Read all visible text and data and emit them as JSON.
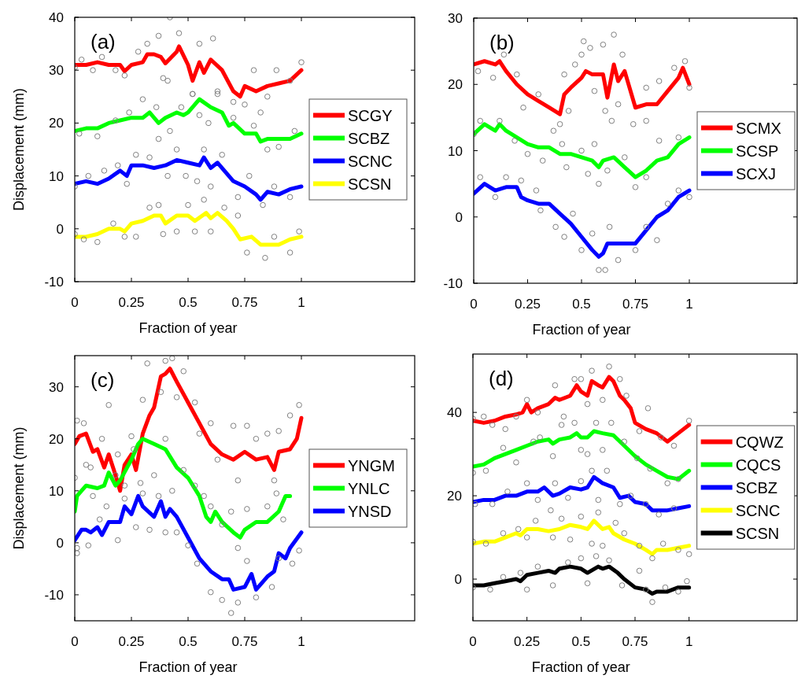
{
  "chart_data": [
    {
      "type": "line",
      "annotations": [
        "(a)"
      ],
      "xlabel": "Fraction of year",
      "ylabel": "Displacement (mm)",
      "xlim": [
        0,
        1.5
      ],
      "xticks": [
        0,
        0.25,
        0.5,
        0.75,
        1
      ],
      "ylim": [
        -10,
        40
      ],
      "yticks": [
        -10,
        0,
        10,
        20,
        30,
        40
      ],
      "legend": "right",
      "series": [
        {
          "name": "SCGY",
          "color": "#ff0000",
          "x": [
            0,
            0.05,
            0.1,
            0.15,
            0.2,
            0.22,
            0.25,
            0.3,
            0.32,
            0.35,
            0.38,
            0.4,
            0.45,
            0.46,
            0.5,
            0.52,
            0.55,
            0.57,
            0.6,
            0.65,
            0.7,
            0.73,
            0.75,
            0.8,
            0.85,
            0.9,
            0.95,
            1
          ],
          "values": [
            31,
            31,
            31.5,
            31,
            31,
            29.8,
            31,
            31.5,
            33,
            33,
            32.5,
            31.3,
            33.5,
            34.5,
            31,
            28,
            31.5,
            29.5,
            32,
            30,
            26,
            25,
            27,
            26,
            27,
            27.5,
            28,
            30
          ]
        },
        {
          "name": "SCBZ",
          "color": "#00ff00",
          "x": [
            0,
            0.05,
            0.1,
            0.15,
            0.2,
            0.25,
            0.3,
            0.33,
            0.37,
            0.4,
            0.45,
            0.48,
            0.5,
            0.55,
            0.6,
            0.65,
            0.68,
            0.7,
            0.75,
            0.8,
            0.82,
            0.85,
            0.9,
            0.95,
            1
          ],
          "values": [
            18.5,
            19,
            19,
            20,
            20.5,
            21,
            21,
            22,
            20,
            21,
            22,
            21.5,
            22,
            24.5,
            23,
            22,
            19.5,
            20,
            18,
            18,
            16.5,
            17,
            17,
            17,
            18
          ]
        },
        {
          "name": "SCNC",
          "color": "#0000ff",
          "x": [
            0,
            0.05,
            0.1,
            0.15,
            0.2,
            0.23,
            0.25,
            0.3,
            0.35,
            0.4,
            0.45,
            0.5,
            0.55,
            0.57,
            0.6,
            0.63,
            0.7,
            0.75,
            0.8,
            0.82,
            0.85,
            0.9,
            0.95,
            1
          ],
          "values": [
            8.5,
            9,
            8.5,
            9.5,
            11,
            10,
            12,
            12,
            11.5,
            12,
            13,
            12.5,
            12,
            13.5,
            11.5,
            12.5,
            9,
            8,
            6.5,
            5.5,
            7,
            6.5,
            7.5,
            8
          ]
        },
        {
          "name": "SCSN",
          "color": "#ffff00",
          "x": [
            0,
            0.05,
            0.1,
            0.15,
            0.2,
            0.22,
            0.25,
            0.3,
            0.35,
            0.38,
            0.4,
            0.45,
            0.5,
            0.53,
            0.58,
            0.6,
            0.63,
            0.67,
            0.7,
            0.73,
            0.78,
            0.82,
            0.85,
            0.9,
            0.95,
            1
          ],
          "values": [
            -1.5,
            -1.5,
            -1,
            0,
            0,
            -0.5,
            1,
            1.5,
            2.5,
            2.5,
            1,
            2.5,
            2.5,
            1.5,
            3,
            2,
            3,
            1.5,
            0,
            -2,
            -1.5,
            -3,
            -3,
            -3,
            -2,
            -1.5
          ]
        },
        {
          "type": "scatter",
          "color": "#808080",
          "marker": "circle",
          "x": [
            0,
            0.03,
            0.08,
            0.12,
            0.18,
            0.22,
            0.28,
            0.32,
            0.37,
            0.39,
            0.41,
            0.42,
            0.46,
            0.52,
            0.55,
            0.61,
            0.63,
            0.7,
            0.75,
            0.79,
            0.85,
            0.89,
            0.95,
            1
          ],
          "values": [
            30.5,
            32,
            30,
            32.5,
            30,
            29,
            33.5,
            35,
            36.5,
            28.5,
            28,
            40,
            37,
            25.5,
            35,
            36,
            26,
            24,
            23.5,
            30,
            25,
            30,
            28,
            31.5
          ]
        },
        {
          "type": "scatter",
          "color": "#808080",
          "marker": "circle",
          "x": [
            0.02,
            0.1,
            0.18,
            0.24,
            0.3,
            0.36,
            0.37,
            0.42,
            0.47,
            0.52,
            0.55,
            0.59,
            0.63,
            0.7,
            0.79,
            0.82,
            0.85,
            0.9,
            0.97
          ],
          "values": [
            18,
            17.5,
            20.5,
            22,
            24.5,
            23,
            17,
            18.5,
            23,
            25.5,
            21.5,
            20,
            25.5,
            21,
            19.5,
            22,
            15,
            15.5,
            18.5
          ]
        },
        {
          "type": "scatter",
          "color": "#808080",
          "marker": "circle",
          "x": [
            0,
            0.06,
            0.13,
            0.19,
            0.23,
            0.27,
            0.33,
            0.41,
            0.45,
            0.49,
            0.54,
            0.57,
            0.6,
            0.65,
            0.72,
            0.77,
            0.83,
            0.88,
            0.95
          ],
          "values": [
            8,
            10,
            11,
            12,
            8.5,
            14,
            13.5,
            10,
            15,
            10,
            9,
            15,
            8,
            14,
            6,
            10,
            4.5,
            8,
            6
          ]
        },
        {
          "type": "scatter",
          "color": "#808080",
          "marker": "circle",
          "x": [
            0,
            0.04,
            0.1,
            0.17,
            0.22,
            0.27,
            0.33,
            0.37,
            0.39,
            0.45,
            0.5,
            0.53,
            0.57,
            0.6,
            0.66,
            0.72,
            0.76,
            0.84,
            0.88,
            0.95,
            0.99
          ],
          "values": [
            -1,
            -2,
            -2.5,
            1,
            -1.5,
            -1.5,
            4,
            4.5,
            -1,
            -0.5,
            4.5,
            -0.5,
            5.5,
            -0.5,
            4,
            2.5,
            -4.5,
            -5.5,
            -1.5,
            -4.5,
            -0.5
          ]
        }
      ]
    },
    {
      "type": "line",
      "annotations": [
        "(b)"
      ],
      "xlabel": "Fraction of year",
      "xlim": [
        0,
        1.5
      ],
      "xticks": [
        0,
        0.25,
        0.5,
        0.75,
        1
      ],
      "ylim": [
        -10,
        30
      ],
      "yticks": [
        -10,
        0,
        10,
        20,
        30
      ],
      "legend": "right",
      "series": [
        {
          "name": "SCMX",
          "color": "#ff0000",
          "x": [
            0,
            0.05,
            0.1,
            0.12,
            0.15,
            0.2,
            0.25,
            0.3,
            0.35,
            0.4,
            0.42,
            0.45,
            0.5,
            0.52,
            0.55,
            0.6,
            0.62,
            0.65,
            0.67,
            0.7,
            0.75,
            0.8,
            0.85,
            0.9,
            0.95,
            0.97,
            1
          ],
          "values": [
            23,
            23.5,
            23,
            23.5,
            22,
            20,
            18.5,
            17.5,
            16.5,
            15.5,
            18.5,
            19.5,
            21,
            22,
            21.5,
            21.5,
            18,
            23,
            20.5,
            22,
            16.5,
            17,
            17,
            19,
            21,
            22.5,
            20
          ]
        },
        {
          "name": "SCSP",
          "color": "#00ff00",
          "x": [
            0,
            0.05,
            0.1,
            0.12,
            0.15,
            0.2,
            0.25,
            0.3,
            0.35,
            0.4,
            0.45,
            0.5,
            0.55,
            0.58,
            0.6,
            0.65,
            0.7,
            0.75,
            0.8,
            0.85,
            0.9,
            0.95,
            1
          ],
          "values": [
            12.5,
            14,
            13,
            14,
            13,
            12,
            11,
            10.5,
            10.5,
            9.5,
            9.5,
            9,
            8.5,
            7.5,
            8.5,
            9,
            7.5,
            6,
            7,
            8.5,
            9,
            11,
            12
          ]
        },
        {
          "name": "SCXJ",
          "color": "#0000ff",
          "x": [
            0,
            0.05,
            0.1,
            0.15,
            0.2,
            0.22,
            0.25,
            0.3,
            0.35,
            0.4,
            0.45,
            0.5,
            0.55,
            0.58,
            0.6,
            0.62,
            0.65,
            0.7,
            0.75,
            0.8,
            0.85,
            0.9,
            0.95,
            1
          ],
          "values": [
            3.5,
            5,
            4,
            4.5,
            4.5,
            3,
            2.5,
            2,
            2,
            0.5,
            -1,
            -3,
            -5,
            -6,
            -5.5,
            -4,
            -4,
            -4,
            -4,
            -2,
            0,
            1,
            3,
            4
          ]
        },
        {
          "type": "scatter",
          "color": "#808080",
          "marker": "circle",
          "x": [
            0.02,
            0.09,
            0.14,
            0.2,
            0.23,
            0.3,
            0.37,
            0.4,
            0.42,
            0.44,
            0.47,
            0.5,
            0.51,
            0.54,
            0.56,
            0.6,
            0.61,
            0.64,
            0.65,
            0.67,
            0.69,
            0.74,
            0.8,
            0.8,
            0.86,
            0.93,
            0.98,
            1
          ],
          "values": [
            22,
            21,
            24.5,
            21.5,
            16.5,
            18.5,
            13,
            14,
            21.5,
            16,
            23,
            24.5,
            26.5,
            25.5,
            19,
            26,
            16,
            14.5,
            27.5,
            17,
            24.5,
            14,
            19.5,
            14.5,
            20.5,
            22.5,
            23.5,
            19.5
          ]
        },
        {
          "type": "scatter",
          "color": "#808080",
          "marker": "circle",
          "x": [
            0,
            0.03,
            0.12,
            0.19,
            0.25,
            0.32,
            0.41,
            0.43,
            0.5,
            0.53,
            0.56,
            0.58,
            0.62,
            0.7,
            0.75,
            0.8,
            0.86,
            0.95
          ],
          "values": [
            12.5,
            14.5,
            14.5,
            11.5,
            9.5,
            8.5,
            11,
            7.5,
            10,
            6.5,
            11,
            5,
            7,
            9,
            4.5,
            6,
            11.5,
            12
          ]
        },
        {
          "type": "scatter",
          "color": "#808080",
          "marker": "circle",
          "x": [
            0.03,
            0.1,
            0.15,
            0.22,
            0.29,
            0.31,
            0.38,
            0.42,
            0.46,
            0.5,
            0.55,
            0.58,
            0.61,
            0.63,
            0.67,
            0.75,
            0.8,
            0.85,
            0.9,
            0.95,
            1
          ],
          "values": [
            6,
            3,
            6,
            5.5,
            4,
            1,
            -1.5,
            -3,
            0.5,
            -5,
            -2.5,
            -8,
            -8,
            -1.5,
            -6.5,
            -5,
            -1.5,
            -3.5,
            2,
            4,
            3
          ]
        }
      ]
    },
    {
      "type": "line",
      "annotations": [
        "(c)"
      ],
      "xlabel": "Fraction of year",
      "ylabel": "Displacement (mm)",
      "xlim": [
        0,
        1.5
      ],
      "xticks": [
        0,
        0.25,
        0.5,
        0.75,
        1
      ],
      "ylim": [
        -15,
        36
      ],
      "yticks": [
        -10,
        0,
        10,
        20,
        30
      ],
      "legend": "right",
      "series": [
        {
          "name": "YNGM",
          "color": "#ff0000",
          "x": [
            0,
            0.02,
            0.05,
            0.08,
            0.1,
            0.13,
            0.15,
            0.18,
            0.2,
            0.22,
            0.25,
            0.27,
            0.3,
            0.33,
            0.35,
            0.38,
            0.4,
            0.42,
            0.45,
            0.5,
            0.55,
            0.6,
            0.65,
            0.7,
            0.75,
            0.8,
            0.85,
            0.88,
            0.9,
            0.95,
            0.98,
            1
          ],
          "values": [
            19,
            20.5,
            21,
            17.5,
            18,
            14.5,
            17,
            13,
            10,
            15,
            17,
            14,
            21,
            24.5,
            26,
            32,
            32.5,
            33.5,
            31,
            27,
            23,
            19,
            17,
            16,
            17.5,
            16,
            16.5,
            14,
            17.5,
            18,
            20,
            24
          ]
        },
        {
          "name": "YNLC",
          "color": "#00ff00",
          "x": [
            0,
            0.01,
            0.05,
            0.1,
            0.13,
            0.15,
            0.18,
            0.2,
            0.25,
            0.28,
            0.3,
            0.35,
            0.4,
            0.45,
            0.5,
            0.55,
            0.58,
            0.6,
            0.62,
            0.65,
            0.7,
            0.73,
            0.75,
            0.8,
            0.85,
            0.9,
            0.93,
            0.95
          ],
          "values": [
            6,
            9,
            11,
            10.5,
            11,
            13.5,
            11,
            12,
            16,
            19,
            20,
            19,
            18,
            14.5,
            12.5,
            9,
            5,
            4,
            6,
            4,
            2,
            1,
            2.5,
            4,
            4,
            6,
            9,
            9
          ]
        },
        {
          "name": "YNSD",
          "color": "#0000ff",
          "x": [
            0,
            0.03,
            0.05,
            0.07,
            0.1,
            0.12,
            0.15,
            0.2,
            0.22,
            0.25,
            0.28,
            0.3,
            0.35,
            0.38,
            0.4,
            0.42,
            0.45,
            0.5,
            0.55,
            0.6,
            0.65,
            0.68,
            0.7,
            0.75,
            0.78,
            0.8,
            0.85,
            0.88,
            0.9,
            0.93,
            0.95,
            1
          ],
          "values": [
            0.5,
            2.5,
            2.5,
            2,
            3,
            1.5,
            4,
            4,
            7,
            5.5,
            9,
            7,
            5,
            8,
            5,
            6.5,
            5,
            1,
            -3,
            -5.5,
            -7,
            -7,
            -9,
            -8.5,
            -6,
            -9,
            -6.5,
            -5.5,
            -2,
            -3,
            -1,
            2
          ]
        },
        {
          "type": "scatter",
          "color": "#808080",
          "marker": "circle",
          "x": [
            0.01,
            0.04,
            0.07,
            0.15,
            0.19,
            0.25,
            0.3,
            0.32,
            0.38,
            0.4,
            0.43,
            0.45,
            0.48,
            0.53,
            0.55,
            0.6,
            0.63,
            0.7,
            0.72,
            0.76,
            0.8,
            0.85,
            0.88,
            0.9,
            0.95,
            0.99
          ],
          "values": [
            23.5,
            23,
            14.5,
            26.5,
            17,
            20.5,
            27.5,
            34.5,
            29,
            35,
            35.5,
            28,
            33,
            27,
            21,
            23,
            16,
            22.5,
            12,
            22.5,
            20,
            21,
            12,
            21.5,
            24.5,
            26.5
          ]
        },
        {
          "type": "scatter",
          "color": "#808080",
          "marker": "circle",
          "x": [
            0,
            0.05,
            0.08,
            0.12,
            0.18,
            0.22,
            0.26,
            0.29,
            0.35,
            0.4,
            0.43,
            0.48,
            0.53,
            0.57,
            0.6,
            0.65,
            0.69,
            0.72,
            0.76,
            0.85,
            0.89,
            0.92
          ],
          "values": [
            12.5,
            15,
            9,
            20,
            13,
            11,
            18,
            11.5,
            13,
            20,
            10,
            14,
            11,
            9,
            7,
            3.5,
            6,
            -1,
            6.5,
            7,
            9.5,
            4.5
          ]
        },
        {
          "type": "scatter",
          "color": "#808080",
          "marker": "circle",
          "x": [
            0.01,
            0.01,
            0.06,
            0.11,
            0.14,
            0.19,
            0.22,
            0.27,
            0.3,
            0.33,
            0.37,
            0.4,
            0.45,
            0.5,
            0.54,
            0.6,
            0.65,
            0.69,
            0.72,
            0.76,
            0.8,
            0.87,
            0.9,
            0.96,
            0.99
          ],
          "values": [
            -1,
            -2,
            -0.5,
            4.5,
            7,
            0.5,
            8.5,
            3,
            9.5,
            2.5,
            9,
            2,
            2,
            -0.5,
            -4,
            -9.5,
            -11,
            -13.5,
            -11.5,
            -3.5,
            -10.5,
            -8.5,
            -3,
            -4,
            -1.5
          ]
        }
      ]
    },
    {
      "type": "line",
      "annotations": [
        "(d)"
      ],
      "xlabel": "Fraction of year",
      "xlim": [
        0,
        1.5
      ],
      "xticks": [
        0,
        0.25,
        0.5,
        0.75,
        1
      ],
      "ylim": [
        -10,
        54
      ],
      "yticks": [
        0,
        20,
        40
      ],
      "legend": "right",
      "series": [
        {
          "name": "CQWZ",
          "color": "#ff0000",
          "x": [
            0,
            0.05,
            0.1,
            0.15,
            0.2,
            0.23,
            0.25,
            0.27,
            0.3,
            0.35,
            0.38,
            0.4,
            0.45,
            0.48,
            0.5,
            0.53,
            0.55,
            0.58,
            0.6,
            0.63,
            0.65,
            0.68,
            0.7,
            0.73,
            0.75,
            0.8,
            0.85,
            0.9,
            0.95,
            1
          ],
          "values": [
            38,
            37.5,
            38,
            39,
            39.5,
            40,
            42,
            40,
            41,
            42,
            43.5,
            43,
            44,
            46.5,
            45,
            44,
            47.5,
            46.5,
            46,
            48.5,
            47.5,
            44,
            43,
            41,
            37.5,
            36,
            35,
            33,
            35,
            37
          ]
        },
        {
          "name": "CQCS",
          "color": "#00ff00",
          "x": [
            0,
            0.05,
            0.1,
            0.15,
            0.2,
            0.25,
            0.3,
            0.35,
            0.37,
            0.4,
            0.45,
            0.48,
            0.5,
            0.53,
            0.56,
            0.6,
            0.65,
            0.7,
            0.75,
            0.8,
            0.85,
            0.9,
            0.95,
            1
          ],
          "values": [
            27,
            27.5,
            29,
            30,
            31,
            32,
            33,
            33.5,
            32.5,
            33.5,
            34,
            35,
            34,
            34,
            35.5,
            35,
            34.5,
            32,
            29.5,
            27.5,
            26,
            24.5,
            24,
            26
          ]
        },
        {
          "name": "SCBZ",
          "color": "#0000ff",
          "x": [
            0,
            0.05,
            0.1,
            0.15,
            0.2,
            0.25,
            0.3,
            0.33,
            0.37,
            0.4,
            0.45,
            0.5,
            0.53,
            0.56,
            0.6,
            0.65,
            0.68,
            0.72,
            0.75,
            0.8,
            0.83,
            0.9,
            0.95,
            1
          ],
          "values": [
            18.5,
            19,
            19,
            20,
            20,
            21,
            21,
            22,
            20,
            20.5,
            22,
            21.5,
            22,
            24.5,
            23,
            22,
            19.5,
            20,
            18.5,
            18,
            16.5,
            16.5,
            17,
            17.5
          ]
        },
        {
          "name": "SCNC",
          "color": "#ffff00",
          "x": [
            0,
            0.05,
            0.1,
            0.15,
            0.2,
            0.22,
            0.25,
            0.3,
            0.35,
            0.4,
            0.45,
            0.5,
            0.53,
            0.56,
            0.6,
            0.63,
            0.65,
            0.7,
            0.75,
            0.8,
            0.83,
            0.85,
            0.9,
            0.95,
            1
          ],
          "values": [
            8.5,
            9,
            9,
            10,
            11,
            10.5,
            12,
            12,
            11.5,
            12,
            13,
            12.5,
            12,
            14,
            12,
            12.5,
            11,
            9.5,
            8.5,
            7,
            6,
            7,
            7,
            7.5,
            8
          ]
        },
        {
          "name": "SCSN",
          "color": "#000000",
          "x": [
            0,
            0.05,
            0.1,
            0.15,
            0.2,
            0.22,
            0.25,
            0.3,
            0.35,
            0.38,
            0.4,
            0.45,
            0.5,
            0.53,
            0.58,
            0.6,
            0.63,
            0.67,
            0.7,
            0.75,
            0.8,
            0.83,
            0.85,
            0.9,
            0.95,
            1
          ],
          "values": [
            -1.5,
            -1.5,
            -1,
            -0.5,
            0,
            -0.5,
            1,
            1.5,
            2,
            1.5,
            2.5,
            3,
            2.5,
            1.5,
            3,
            2.5,
            3,
            1.5,
            0,
            -2,
            -2.5,
            -3.5,
            -3,
            -3,
            -2,
            -2
          ]
        },
        {
          "type": "scatter",
          "color": "#808080",
          "marker": "circle",
          "x": [
            0,
            0.05,
            0.09,
            0.15,
            0.2,
            0.25,
            0.3,
            0.38,
            0.42,
            0.47,
            0.5,
            0.53,
            0.55,
            0.6,
            0.63,
            0.68,
            0.71,
            0.77,
            0.81,
            0.87,
            0.93,
            1
          ],
          "values": [
            38.5,
            39,
            37,
            36,
            39,
            43,
            40,
            46.5,
            39,
            48,
            48,
            42,
            50,
            43,
            51,
            48,
            44,
            35.5,
            41,
            34,
            32,
            38
          ]
        },
        {
          "type": "scatter",
          "color": "#808080",
          "marker": "circle",
          "x": [
            0,
            0.06,
            0.14,
            0.2,
            0.28,
            0.31,
            0.37,
            0.41,
            0.47,
            0.5,
            0.53,
            0.57,
            0.6,
            0.64,
            0.7,
            0.76,
            0.82,
            0.9,
            0.95
          ],
          "values": [
            25.5,
            26,
            31.5,
            28,
            33,
            34,
            29.5,
            37,
            37.5,
            31,
            30,
            37.5,
            31,
            37.5,
            33,
            29,
            26.5,
            23,
            24
          ]
        },
        {
          "type": "scatter",
          "color": "#808080",
          "marker": "circle",
          "x": [
            0.01,
            0.09,
            0.16,
            0.25,
            0.3,
            0.36,
            0.38,
            0.44,
            0.5,
            0.55,
            0.58,
            0.62,
            0.68,
            0.73,
            0.8,
            0.86,
            0.93
          ],
          "values": [
            18,
            18,
            21,
            23,
            19,
            16.5,
            23,
            19.5,
            23.5,
            26,
            19,
            26,
            18,
            20,
            18,
            15.5,
            17
          ]
        },
        {
          "type": "scatter",
          "color": "#808080",
          "marker": "circle",
          "x": [
            0,
            0.06,
            0.14,
            0.21,
            0.25,
            0.29,
            0.37,
            0.41,
            0.45,
            0.5,
            0.55,
            0.58,
            0.6,
            0.66,
            0.7,
            0.77,
            0.83,
            0.88,
            0.95,
            1
          ],
          "values": [
            9,
            8.5,
            11,
            12,
            10,
            14,
            10,
            14.5,
            9.5,
            15,
            8.5,
            16,
            8,
            13.5,
            11,
            8,
            5,
            8.5,
            7,
            6
          ]
        },
        {
          "type": "scatter",
          "color": "#808080",
          "marker": "circle",
          "x": [
            0,
            0.08,
            0.14,
            0.22,
            0.25,
            0.3,
            0.37,
            0.44,
            0.5,
            0.53,
            0.57,
            0.63,
            0.69,
            0.77,
            0.8,
            0.83,
            0.89,
            0.95,
            0.99
          ],
          "values": [
            -2,
            -2.5,
            0.5,
            1.5,
            -2.5,
            3,
            -1.5,
            4,
            5,
            -1,
            5.5,
            4.5,
            -1.5,
            2,
            -2.5,
            -5.5,
            -2,
            -3,
            -0.5
          ]
        }
      ]
    }
  ]
}
